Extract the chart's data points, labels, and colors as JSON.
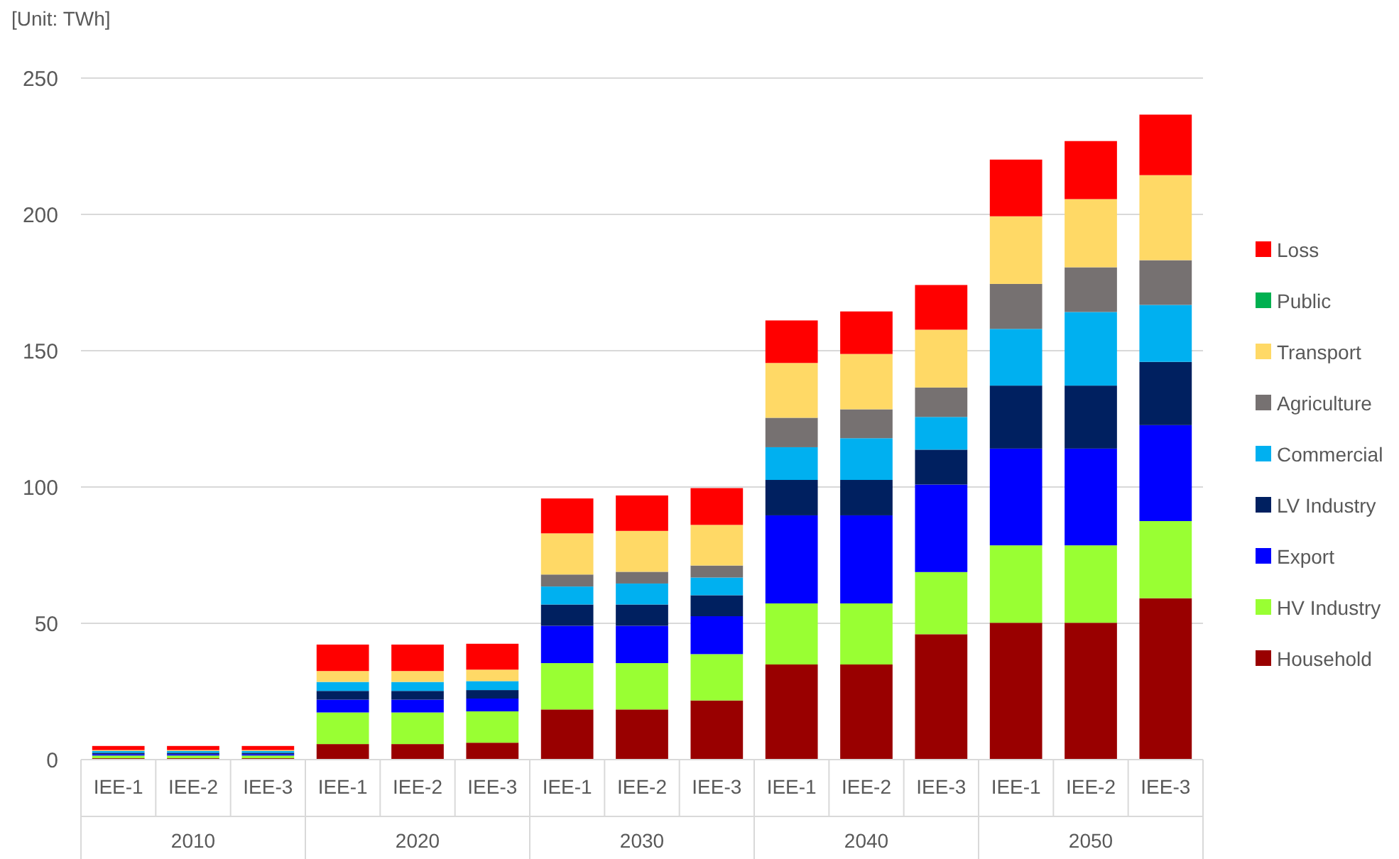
{
  "chart_data": {
    "type": "bar",
    "stacked": true,
    "ylabel": "[Unit: TWh]",
    "categories": [
      "IEE-1",
      "IEE-2",
      "IEE-3",
      "IEE-1",
      "IEE-2",
      "IEE-3",
      "IEE-1",
      "IEE-2",
      "IEE-3",
      "IEE-1",
      "IEE-2",
      "IEE-3",
      "IEE-1",
      "IEE-2",
      "IEE-3"
    ],
    "annotations": [
      "2010",
      "2020",
      "2030",
      "2040",
      "2050"
    ],
    "ylim": [
      0,
      250
    ],
    "yticks": [
      0,
      50,
      100,
      150,
      200,
      250
    ],
    "grid": "y",
    "legend": "right",
    "series": [
      {
        "name": "Household",
        "color": "#990000",
        "values": [
          0.5,
          0.5,
          0.5,
          5.7,
          5.7,
          6.2,
          18.4,
          18.4,
          21.7,
          34.9,
          34.9,
          46.0,
          50.2,
          50.2,
          59.2
        ]
      },
      {
        "name": "HV Industry",
        "color": "#99ff33",
        "values": [
          1.0,
          1.0,
          1.0,
          11.6,
          11.6,
          11.5,
          17.0,
          17.0,
          17.0,
          22.4,
          22.4,
          22.8,
          28.4,
          28.4,
          28.3
        ]
      },
      {
        "name": "Export",
        "color": "#0000ff",
        "values": [
          0.5,
          0.5,
          0.5,
          4.7,
          4.7,
          4.7,
          13.7,
          13.7,
          13.9,
          32.3,
          32.3,
          32.1,
          35.5,
          35.5,
          35.2
        ]
      },
      {
        "name": "LV Industry",
        "color": "#002060",
        "values": [
          0.5,
          0.5,
          0.5,
          3.2,
          3.2,
          3.1,
          7.8,
          7.8,
          7.7,
          13.0,
          13.0,
          12.8,
          23.1,
          23.1,
          23.2
        ]
      },
      {
        "name": "Commercial",
        "color": "#00b0f0",
        "values": [
          0.7,
          0.7,
          0.7,
          3.3,
          3.3,
          3.3,
          6.6,
          7.7,
          6.5,
          12.0,
          15.3,
          12.0,
          20.8,
          27.0,
          20.9
        ]
      },
      {
        "name": "Agriculture",
        "color": "#767171",
        "values": [
          0,
          0,
          0,
          0,
          0,
          0,
          4.4,
          4.3,
          4.4,
          10.8,
          10.6,
          10.8,
          16.5,
          16.4,
          16.4
        ]
      },
      {
        "name": "Transport",
        "color": "#ffd966",
        "values": [
          0.3,
          0.3,
          0.3,
          4.0,
          4.0,
          4.2,
          15.1,
          15.0,
          14.9,
          20.1,
          20.3,
          21.2,
          24.8,
          25.0,
          31.2
        ]
      },
      {
        "name": "Public",
        "color": "#00b050",
        "values": [
          0,
          0,
          0,
          0,
          0,
          0,
          0,
          0,
          0,
          0,
          0,
          0,
          0,
          0,
          0
        ]
      },
      {
        "name": "Loss",
        "color": "#ff0000",
        "values": [
          1.5,
          1.5,
          1.5,
          9.7,
          9.7,
          9.5,
          12.8,
          13.0,
          13.5,
          15.6,
          15.6,
          16.4,
          20.8,
          21.3,
          22.2
        ]
      }
    ]
  }
}
